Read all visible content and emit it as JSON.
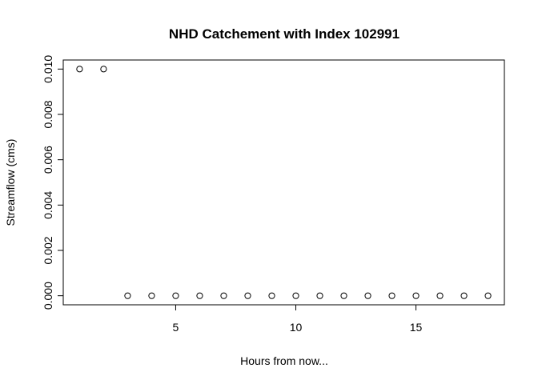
{
  "chart_data": {
    "type": "scatter",
    "title": "NHD Catchement with Index 102991",
    "xlabel": "Hours from now...",
    "ylabel": "Streamflow (cms)",
    "x": [
      1,
      2,
      3,
      4,
      5,
      6,
      7,
      8,
      9,
      10,
      11,
      12,
      13,
      14,
      15,
      16,
      17,
      18
    ],
    "y": [
      0.01,
      0.01,
      0,
      0,
      0,
      0,
      0,
      0,
      0,
      0,
      0,
      0,
      0,
      0,
      0,
      0,
      0,
      0
    ],
    "xlim": [
      0.32,
      18.68
    ],
    "ylim": [
      -0.0004,
      0.0104
    ],
    "xticks": [
      5,
      10,
      15
    ],
    "xtick_labels": [
      "5",
      "10",
      "15"
    ],
    "yticks": [
      0,
      0.002,
      0.004,
      0.006,
      0.008,
      0.01
    ],
    "ytick_labels": [
      "0.000",
      "0.002",
      "0.004",
      "0.006",
      "0.008",
      "0.010"
    ],
    "grid": false,
    "marker": "open-circle"
  }
}
